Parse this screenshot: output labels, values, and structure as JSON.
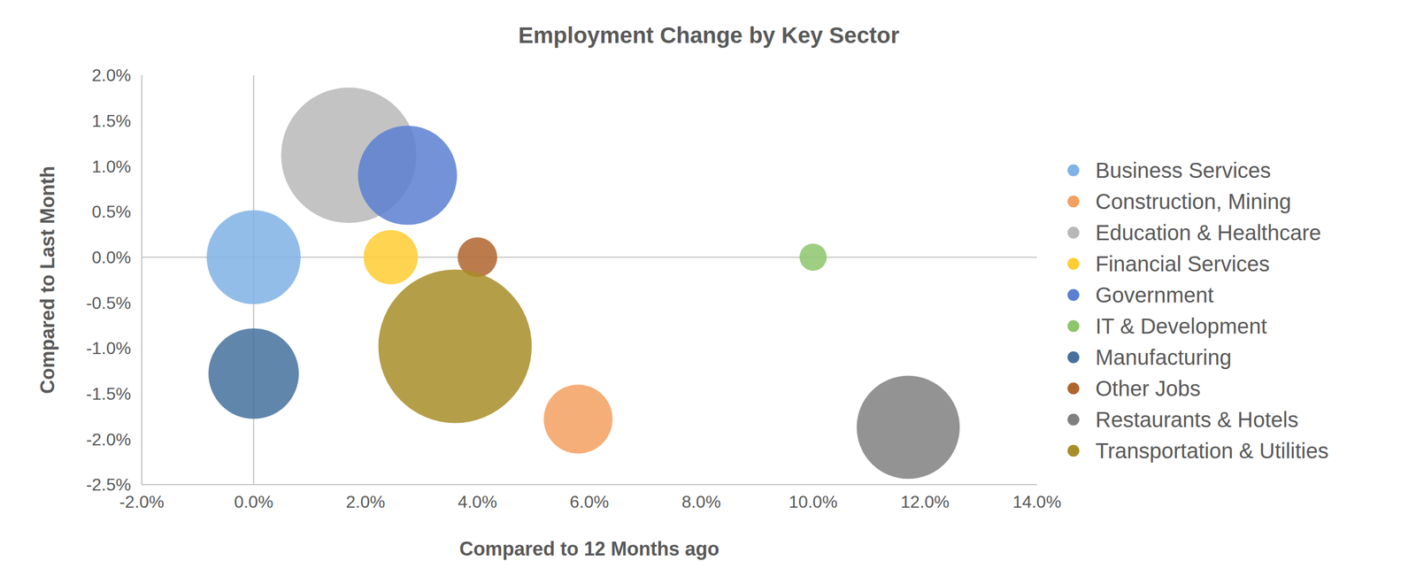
{
  "chart_data": {
    "type": "bubble",
    "title": "Employment Change by Key Sector",
    "x_label": "Compared to 12 Months ago",
    "y_label": "Compared to Last Month",
    "xlim": [
      -2,
      14
    ],
    "ylim": [
      -2.5,
      2
    ],
    "xticks": [
      {
        "value": -2,
        "label": "-2.0%"
      },
      {
        "value": 0,
        "label": "0.0%"
      },
      {
        "value": 2,
        "label": "2.0%"
      },
      {
        "value": 4,
        "label": "4.0%"
      },
      {
        "value": 6,
        "label": "6.0%"
      },
      {
        "value": 8,
        "label": "8.0%"
      },
      {
        "value": 10,
        "label": "10.0%"
      },
      {
        "value": 12,
        "label": "12.0%"
      },
      {
        "value": 14,
        "label": "14.0%"
      }
    ],
    "yticks": [
      {
        "value": -2.5,
        "label": "-2.5%"
      },
      {
        "value": -2,
        "label": "-2.0%"
      },
      {
        "value": -1.5,
        "label": "-1.5%"
      },
      {
        "value": -1,
        "label": "-1.0%"
      },
      {
        "value": -0.5,
        "label": "-0.5%"
      },
      {
        "value": 0,
        "label": "0.0%"
      },
      {
        "value": 0.5,
        "label": "0.5%"
      },
      {
        "value": 1,
        "label": "1.0%"
      },
      {
        "value": 1.5,
        "label": "1.5%"
      },
      {
        "value": 2,
        "label": "2.0%"
      }
    ],
    "grid": false,
    "legend": "right",
    "series": [
      {
        "name": "Business Services",
        "color": "#7fb2e5",
        "x": [
          0.0
        ],
        "values": [
          0.0
        ],
        "size": [
          2700
        ]
      },
      {
        "name": "Construction, Mining",
        "color": "#f4a060",
        "x": [
          5.8
        ],
        "values": [
          -1.78
        ],
        "size": [
          1450
        ]
      },
      {
        "name": "Education & Healthcare",
        "color": "#b8b8b8",
        "x": [
          1.7
        ],
        "values": [
          1.12
        ],
        "size": [
          5600
        ]
      },
      {
        "name": "Financial Services",
        "color": "#ffcc33",
        "x": [
          2.45
        ],
        "values": [
          0.0
        ],
        "size": [
          900
        ]
      },
      {
        "name": "Government",
        "color": "#5b7fd1",
        "x": [
          2.75
        ],
        "values": [
          0.9
        ],
        "size": [
          3000
        ]
      },
      {
        "name": "IT & Development",
        "color": "#8cc66b",
        "x": [
          10.0
        ],
        "values": [
          0.0
        ],
        "size": [
          225
        ]
      },
      {
        "name": "Manufacturing",
        "color": "#44719e",
        "x": [
          0.0
        ],
        "values": [
          -1.28
        ],
        "size": [
          2500
        ]
      },
      {
        "name": "Other Jobs",
        "color": "#b0642e",
        "x": [
          4.0
        ],
        "values": [
          0.0
        ],
        "size": [
          480
        ]
      },
      {
        "name": "Restaurants & Hotels",
        "color": "#808080",
        "x": [
          11.7
        ],
        "values": [
          -1.87
        ],
        "size": [
          3250
        ]
      },
      {
        "name": "Transportation & Utilities",
        "color": "#a88d28",
        "x": [
          3.6
        ],
        "values": [
          -0.98
        ],
        "size": [
          7200
        ]
      }
    ]
  }
}
